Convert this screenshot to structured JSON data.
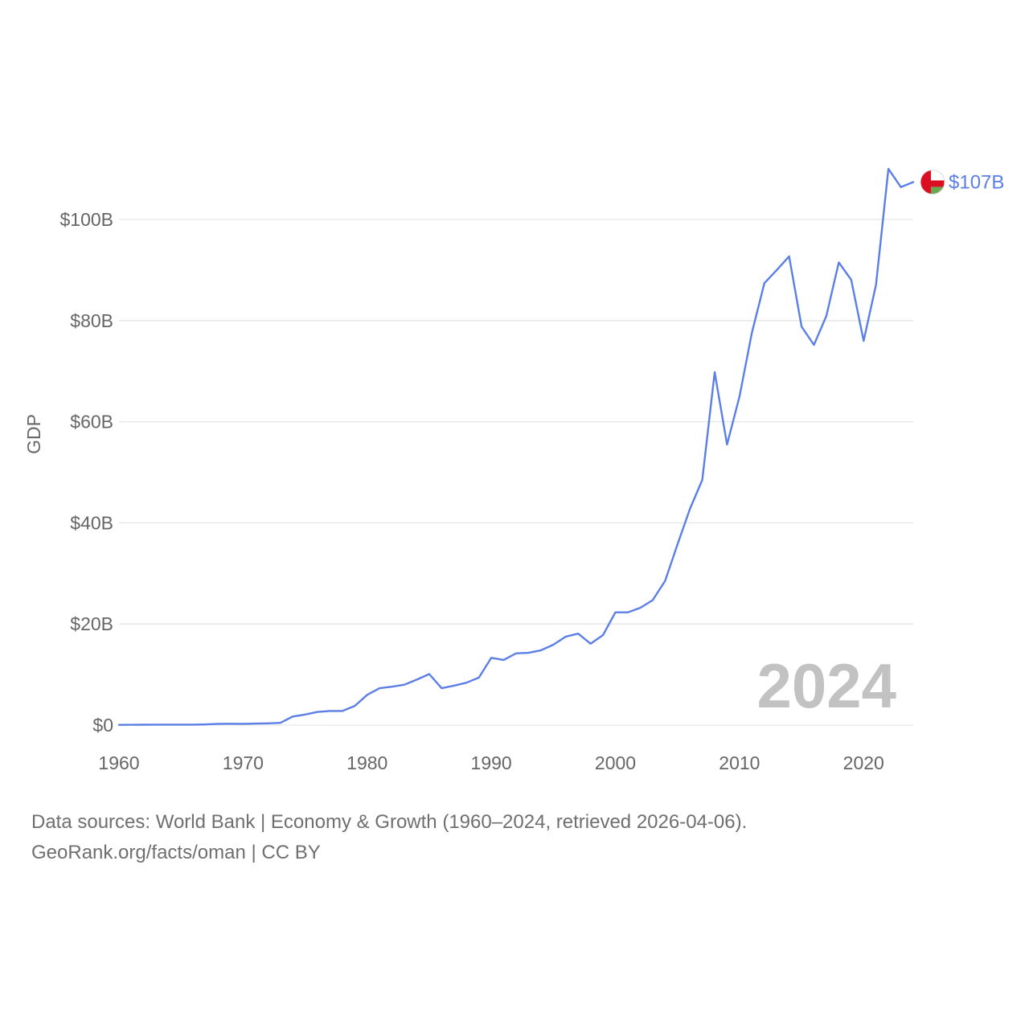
{
  "chart_data": {
    "type": "line",
    "title": "",
    "xlabel": "",
    "ylabel": "GDP",
    "xlim": [
      1960,
      2024
    ],
    "ylim": [
      0,
      110
    ],
    "y_unit": "billion USD",
    "x_ticks": [
      1960,
      1970,
      1980,
      1990,
      2000,
      2010,
      2020
    ],
    "x_tick_labels": [
      "1960",
      "1970",
      "1980",
      "1990",
      "2000",
      "2010",
      "2020"
    ],
    "y_ticks": [
      0,
      20,
      40,
      60,
      80,
      100
    ],
    "y_tick_labels": [
      "$0",
      "$20B",
      "$40B",
      "$60B",
      "$80B",
      "$100B"
    ],
    "grid": true,
    "legend": "none",
    "year_label": "2024",
    "series": [
      {
        "name": "Oman",
        "color": "#5b7fe6",
        "end_label": "$107B",
        "x": [
          1960,
          1961,
          1962,
          1963,
          1964,
          1965,
          1966,
          1967,
          1968,
          1969,
          1970,
          1971,
          1972,
          1973,
          1974,
          1975,
          1976,
          1977,
          1978,
          1979,
          1980,
          1981,
          1982,
          1983,
          1984,
          1985,
          1986,
          1987,
          1988,
          1989,
          1990,
          1991,
          1992,
          1993,
          1994,
          1995,
          1996,
          1997,
          1998,
          1999,
          2000,
          2001,
          2002,
          2003,
          2004,
          2005,
          2006,
          2007,
          2008,
          2009,
          2010,
          2011,
          2012,
          2013,
          2014,
          2015,
          2016,
          2017,
          2018,
          2019,
          2020,
          2021,
          2022,
          2023,
          2024
        ],
        "values": [
          0.05,
          0.06,
          0.08,
          0.09,
          0.09,
          0.1,
          0.1,
          0.15,
          0.25,
          0.27,
          0.26,
          0.3,
          0.35,
          0.45,
          1.7,
          2.1,
          2.6,
          2.8,
          2.8,
          3.8,
          6.0,
          7.3,
          7.6,
          8.0,
          9.0,
          10.1,
          7.3,
          7.8,
          8.4,
          9.4,
          13.3,
          12.9,
          14.2,
          14.3,
          14.8,
          15.9,
          17.5,
          18.1,
          16.1,
          17.8,
          22.3,
          22.3,
          23.2,
          24.7,
          28.5,
          35.7,
          42.7,
          48.5,
          69.8,
          55.5,
          65.0,
          77.6,
          87.4,
          90.0,
          92.7,
          78.8,
          75.2,
          80.9,
          91.5,
          88.1,
          76.0,
          87.1,
          110.0,
          106.4,
          107.4
        ]
      }
    ],
    "flag_colors": {
      "white": "#ffffff",
      "red": "#db0e24",
      "green": "#6aa84f",
      "gray_rim": "#dddddd"
    }
  },
  "footer": {
    "line1": "Data sources: World Bank | Economy & Growth (1960–2024, retrieved 2026-04-06).",
    "line2": "GeoRank.org/facts/oman | CC BY"
  }
}
